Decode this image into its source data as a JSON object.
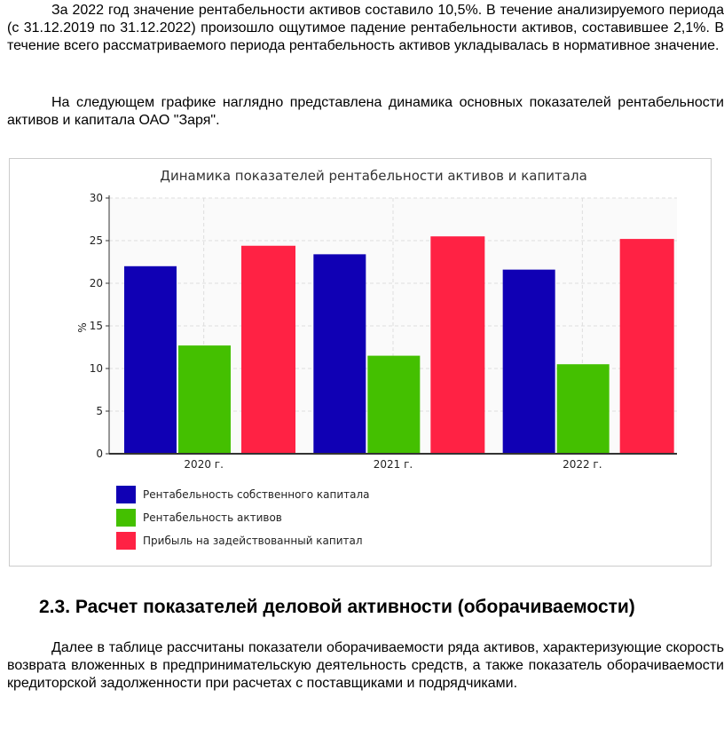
{
  "paragraphs": [
    "За 2022 год значение рентабельности активов составило 10,5%. В течение анализируемого периода (с 31.12.2019 по 31.12.2022) произошло ощутимое падение рентабельности активов, составившее 2,1%. В течение всего рассматриваемого периода рентабельность активов укладывалась в нормативное значение.",
    "На следующем графике наглядно представлена динамика основных показателей рентабельности активов и капитала ОАО \"Заря\"."
  ],
  "section_heading": "2.3. Расчет показателей деловой активности (оборачиваемости)",
  "paragraph3": "Далее в таблице рассчитаны показатели оборачиваемости ряда активов, характеризующие скорость возврата вложенных в предпринимательскую деятельность средств, а также показатель оборачиваемости кредиторской задолженности при расчетах с поставщиками и подрядчиками.",
  "chart_data": {
    "type": "bar",
    "title": "Динамика показателей рентабельности активов и капитала",
    "xlabel": "",
    "ylabel": "%",
    "ylim": [
      0,
      30
    ],
    "yticks": [
      "0",
      "5",
      "10",
      "15",
      "20",
      "25",
      "30"
    ],
    "categories": [
      "2020 г.",
      "2021 г.",
      "2022 г."
    ],
    "grid": true,
    "legend_position": "bottom-left",
    "series": [
      {
        "name": "Рентабельность собственного капитала",
        "color": "#1000b4",
        "values": [
          22.0,
          23.4,
          21.6
        ]
      },
      {
        "name": "Рентабельность активов",
        "color": "#44c000",
        "values": [
          12.7,
          11.5,
          10.5
        ]
      },
      {
        "name": "Прибыль на задействованный капитал",
        "color": "#ff2244",
        "values": [
          24.4,
          25.5,
          25.2
        ]
      }
    ]
  }
}
